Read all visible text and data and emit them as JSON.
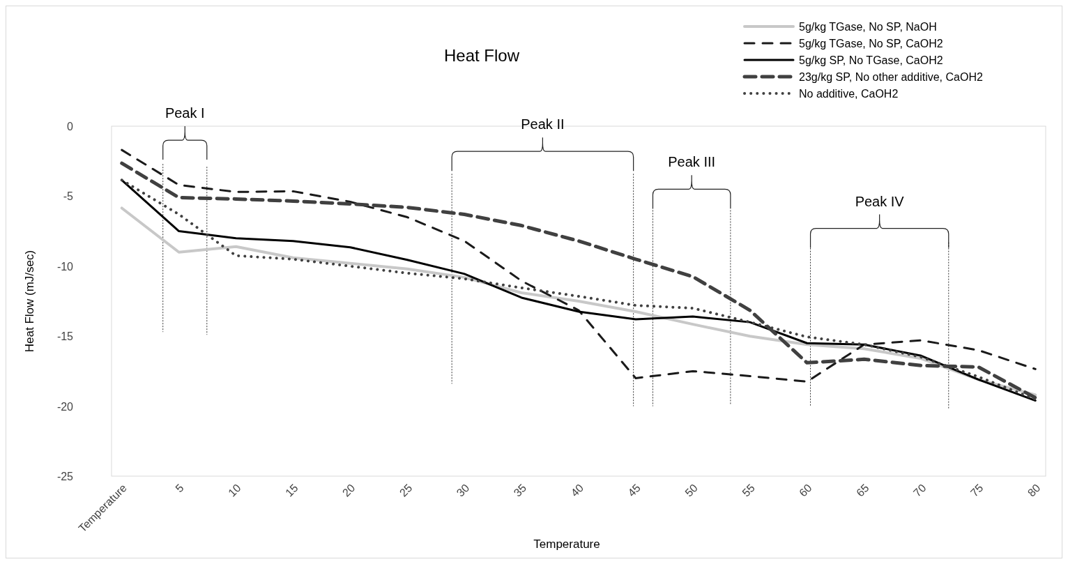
{
  "chart_data": {
    "type": "line",
    "title": "Heat Flow",
    "xlabel": "Temperature",
    "ylabel": "Heat Flow (mJ/sec)",
    "x": [
      0,
      5,
      10,
      15,
      20,
      25,
      30,
      35,
      40,
      45,
      50,
      55,
      60,
      65,
      70,
      75,
      80
    ],
    "xlim": [
      -0.9,
      80.9
    ],
    "xticks": [
      {
        "value": 0,
        "label": "Temperature"
      },
      5,
      10,
      15,
      20,
      25,
      30,
      35,
      40,
      45,
      50,
      55,
      60,
      65,
      70,
      75,
      80
    ],
    "ylim": [
      -25,
      0
    ],
    "yticks": [
      -25,
      -20,
      -15,
      -10,
      -5,
      0
    ],
    "grid": false,
    "legend": "top right",
    "ref_lines": [
      {
        "axis": "x",
        "value": 3.6,
        "color": "#333333",
        "line_style": "dashed",
        "label": "Peak I"
      },
      {
        "axis": "x",
        "value": 7.45,
        "color": "#333333",
        "line_style": "dashed"
      },
      {
        "axis": "x",
        "value": 28.9,
        "color": "#333333",
        "line_style": "dashed",
        "label": "Peak II"
      },
      {
        "axis": "x",
        "value": 44.8,
        "color": "#333333",
        "line_style": "dashed"
      },
      {
        "axis": "x",
        "value": 46.5,
        "color": "#333333",
        "line_style": "dashed",
        "label": "Peak III"
      },
      {
        "axis": "x",
        "value": 53.3,
        "color": "#333333",
        "line_style": "dashed"
      },
      {
        "axis": "x",
        "value": 60.3,
        "color": "#333333",
        "line_style": "dashed",
        "label": "Peak IV"
      },
      {
        "axis": "x",
        "value": 72.4,
        "color": "#333333",
        "line_style": "dashed"
      }
    ],
    "series": [
      {
        "name": "5g/kg TGase, No SP, NaOH",
        "color": "#c8c8c8",
        "line_style": "solid",
        "values": [
          -5.85,
          -9.0,
          -8.6,
          -9.4,
          -9.8,
          -10.2,
          -10.8,
          -11.9,
          -12.5,
          -13.25,
          -14.15,
          -15.0,
          -15.6,
          -15.9,
          -16.6,
          -18.1,
          -19.2
        ]
      },
      {
        "name": "5g/kg TGase, No SP, CaOH2",
        "color": "#1a1a1a",
        "line_style": "dashed",
        "values": [
          -1.7,
          -4.2,
          -4.7,
          -4.65,
          -5.4,
          -6.5,
          -8.2,
          -11.05,
          -13.15,
          -18.0,
          -17.5,
          -17.85,
          -18.25,
          -15.6,
          -15.3,
          -16.0,
          -17.35
        ]
      },
      {
        "name": "5g/kg SP, No TGase, CaOH2",
        "color": "#000000",
        "line_style": "solid",
        "values": [
          -3.85,
          -7.5,
          -8.0,
          -8.2,
          -8.65,
          -9.55,
          -10.55,
          -12.25,
          -13.25,
          -13.8,
          -13.6,
          -14.0,
          -15.5,
          -15.6,
          -16.4,
          -18.1,
          -19.6
        ]
      },
      {
        "name": "23g/kg SP, No other additive, CaOH2",
        "color": "#404040",
        "line_style": "dashed",
        "values": [
          -2.65,
          -5.1,
          -5.2,
          -5.35,
          -5.55,
          -5.8,
          -6.3,
          -7.1,
          -8.2,
          -9.5,
          -10.75,
          -13.15,
          -16.9,
          -16.65,
          -17.1,
          -17.2,
          -19.4
        ]
      },
      {
        "name": "No additive, CaOH2",
        "color": "#404040",
        "line_style": "dotted",
        "values": [
          -3.85,
          -6.3,
          -9.25,
          -9.5,
          -10.0,
          -10.5,
          -10.9,
          -11.55,
          -12.15,
          -12.8,
          -13.0,
          -14.0,
          -15.05,
          -15.6,
          -16.5,
          -17.9,
          -19.5
        ]
      }
    ]
  }
}
